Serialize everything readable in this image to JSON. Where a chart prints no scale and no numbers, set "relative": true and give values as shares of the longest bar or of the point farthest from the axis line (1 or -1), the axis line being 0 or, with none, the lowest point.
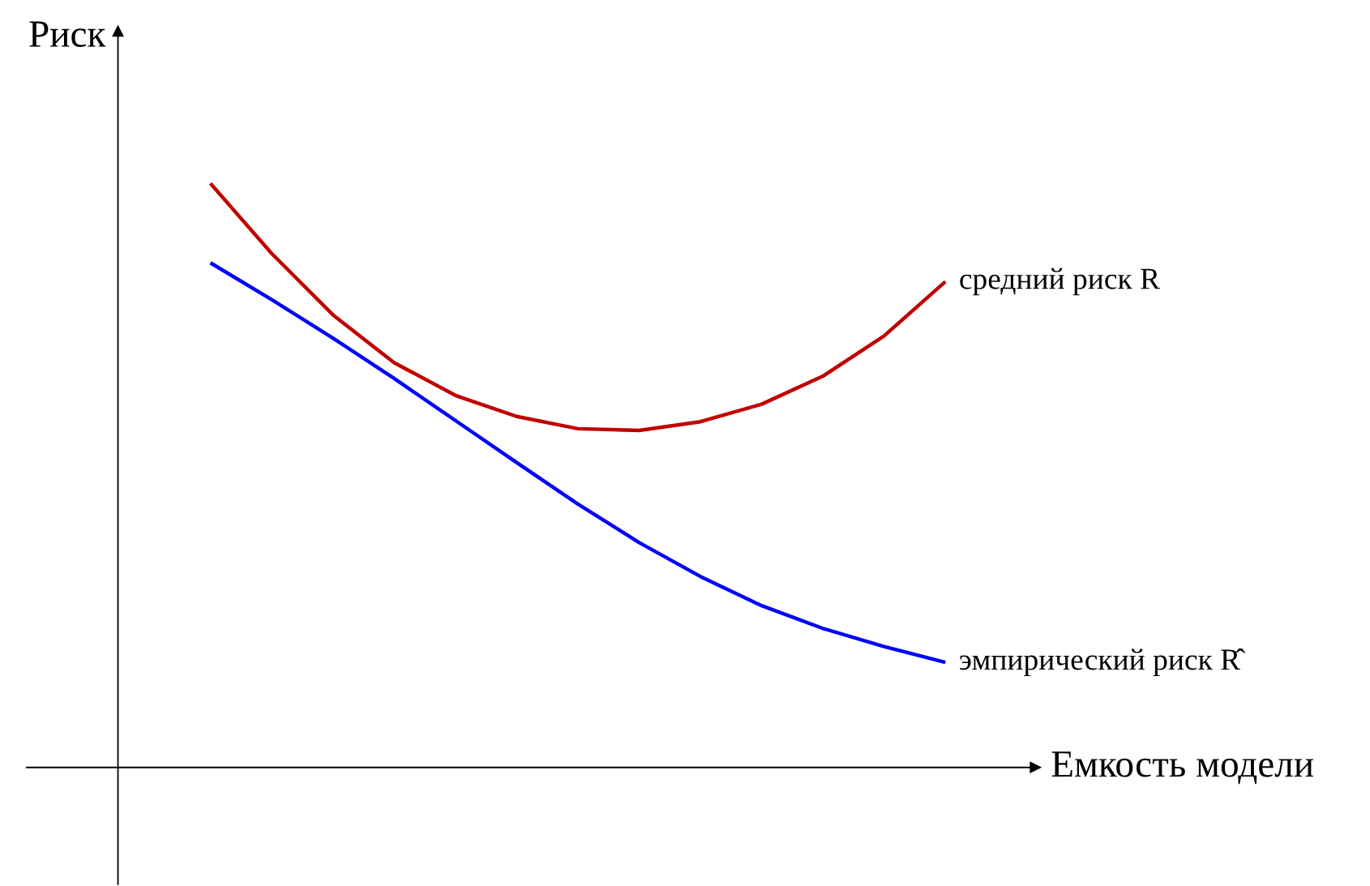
{
  "chart_data": {
    "type": "line",
    "relative": true,
    "xlabel": "Емкость модели",
    "ylabel": "Риск",
    "categories": [
      null,
      null,
      null,
      null,
      null,
      null,
      null,
      null,
      null,
      null,
      null,
      null,
      null
    ],
    "series": [
      {
        "name": "средний риск R",
        "color": "#c00000",
        "values": [
          1,
          0.88,
          0.775,
          0.693,
          0.637,
          0.601,
          0.58,
          0.577,
          0.592,
          0.622,
          0.67,
          0.739,
          0.832
        ]
      },
      {
        "name": "эмпирический риск R̂",
        "color": "#0000ff",
        "values": [
          0.864,
          0.801,
          0.735,
          0.666,
          0.594,
          0.522,
          0.451,
          0.385,
          0.327,
          0.277,
          0.238,
          0.207,
          0.18
        ]
      }
    ],
    "legend": false,
    "marker": "none",
    "line_style": "solid"
  }
}
